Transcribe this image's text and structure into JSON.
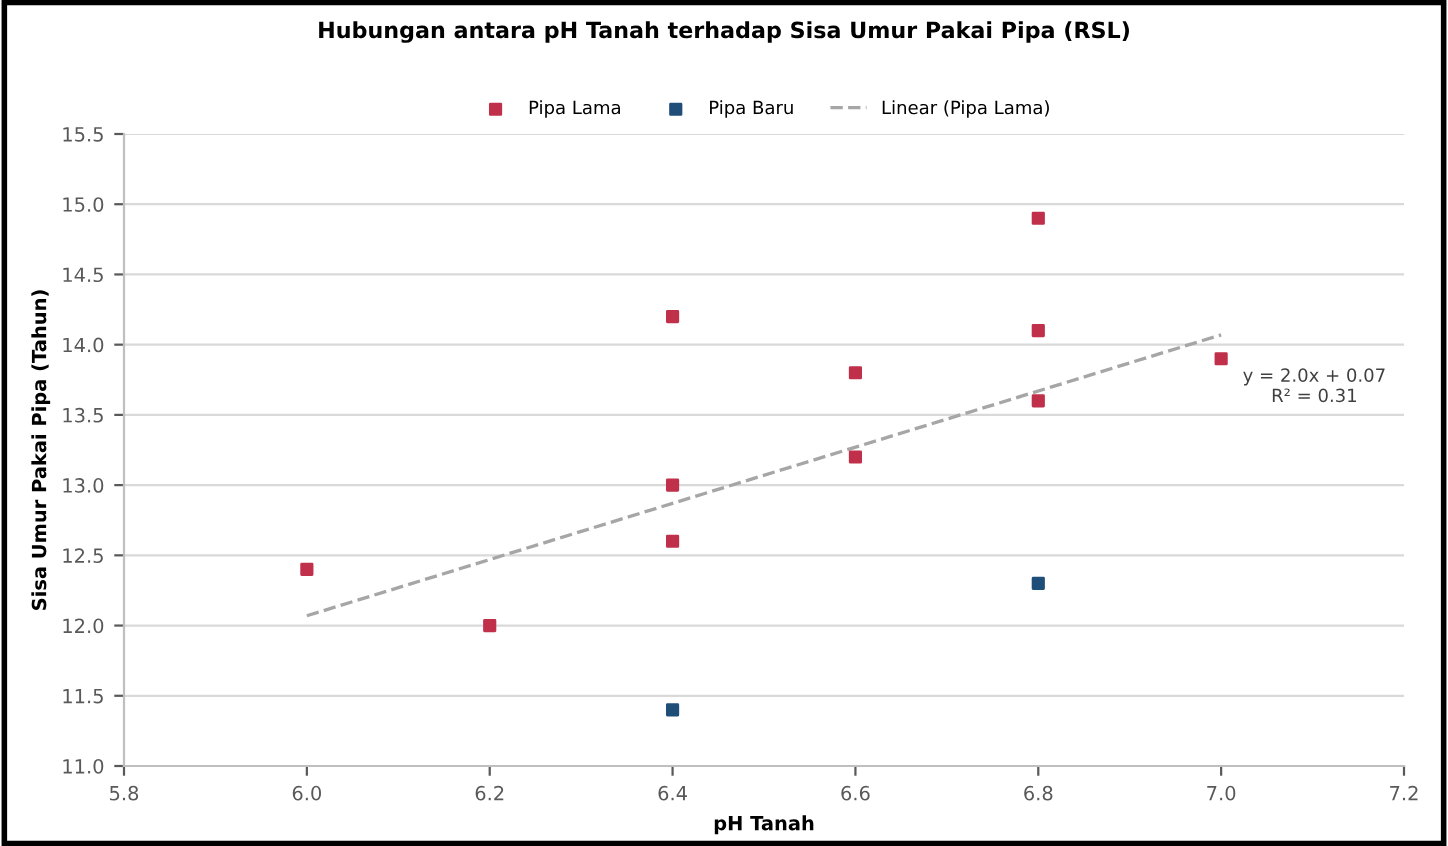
{
  "chart_data": {
    "type": "scatter",
    "title": "Hubungan antara pH Tanah terhadap Sisa Umur Pakai Pipa (RSL)",
    "xlabel": "pH Tanah",
    "ylabel": "Sisa Umur Pakai Pipa (Tahun)",
    "series": [
      {
        "name": "Pipa Lama",
        "color": "#c0304a",
        "x": [
          6.0,
          6.2,
          6.4,
          6.4,
          6.4,
          6.6,
          6.6,
          6.8,
          6.8,
          6.8,
          7.0
        ],
        "values": [
          12.4,
          12.0,
          14.2,
          13.0,
          12.6,
          13.8,
          13.2,
          14.9,
          14.1,
          13.6,
          13.9
        ]
      },
      {
        "name": "Pipa Baru",
        "color": "#1f4e79",
        "x": [
          6.4,
          6.8
        ],
        "values": [
          11.4,
          12.3
        ]
      },
      {
        "name": "Linear (Pipa Lama)",
        "type": "line",
        "line_style": "dashed",
        "marker": "none",
        "color": "#a6a6a6",
        "x": [
          6.0,
          7.0
        ],
        "values": [
          12.07,
          14.07
        ]
      }
    ],
    "annotations": [
      "y = 2.0x + 0.07\nR² = 0.31"
    ],
    "xlim": [
      5.8,
      7.2
    ],
    "xticks": [
      5.8,
      {
        "value": 6,
        "label": "6.0"
      },
      6.2,
      6.4,
      6.6,
      6.8,
      {
        "value": 7,
        "label": "7.0"
      },
      7.2
    ],
    "ylim": [
      11,
      15.5
    ],
    "yticks": [
      {
        "value": 11,
        "label": "11.0"
      },
      11.5,
      {
        "value": 12,
        "label": "12.0"
      },
      12.5,
      {
        "value": 13,
        "label": "13.0"
      },
      13.5,
      {
        "value": 14,
        "label": "14.0"
      },
      14.5,
      {
        "value": 15,
        "label": "15.0"
      },
      15.5
    ],
    "grid": "y",
    "legend": "top",
    "marker": "square"
  }
}
